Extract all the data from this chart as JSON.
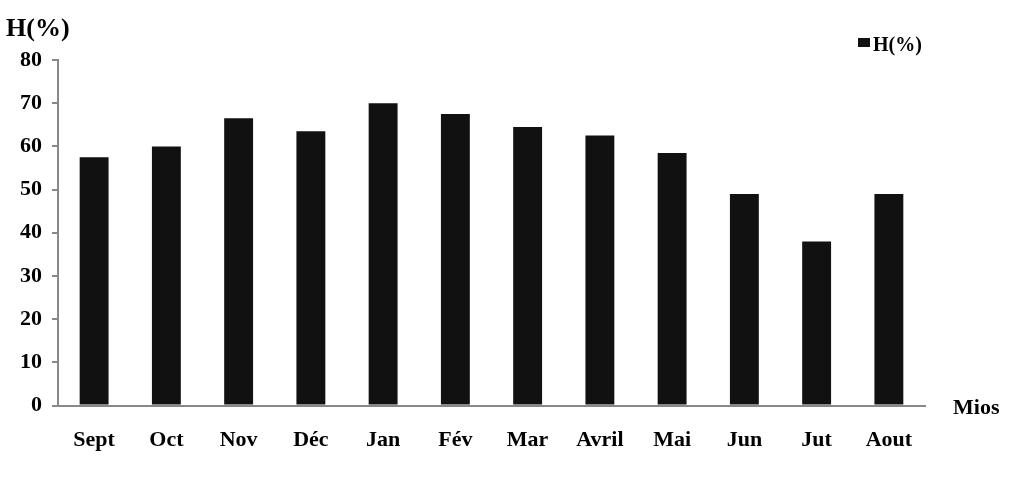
{
  "chart_data": {
    "type": "bar",
    "ylabel": "H(%)",
    "xlabel": "Mios",
    "categories": [
      "Sept",
      "Oct",
      "Nov",
      "Déc",
      "Jan",
      "Fév",
      "Mar",
      "Avril",
      "Mai",
      "Jun",
      "Jut",
      "Aout"
    ],
    "series": [
      {
        "name": "H(%)",
        "color": "#111111",
        "values": [
          57.5,
          60,
          66.5,
          63.5,
          70,
          67.5,
          64.5,
          62.5,
          58.5,
          49,
          38,
          49
        ]
      }
    ],
    "ylim": [
      0,
      80
    ],
    "yticks": [
      0,
      10,
      20,
      30,
      40,
      50,
      60,
      70,
      80
    ],
    "grid": false,
    "legend": "top right"
  }
}
